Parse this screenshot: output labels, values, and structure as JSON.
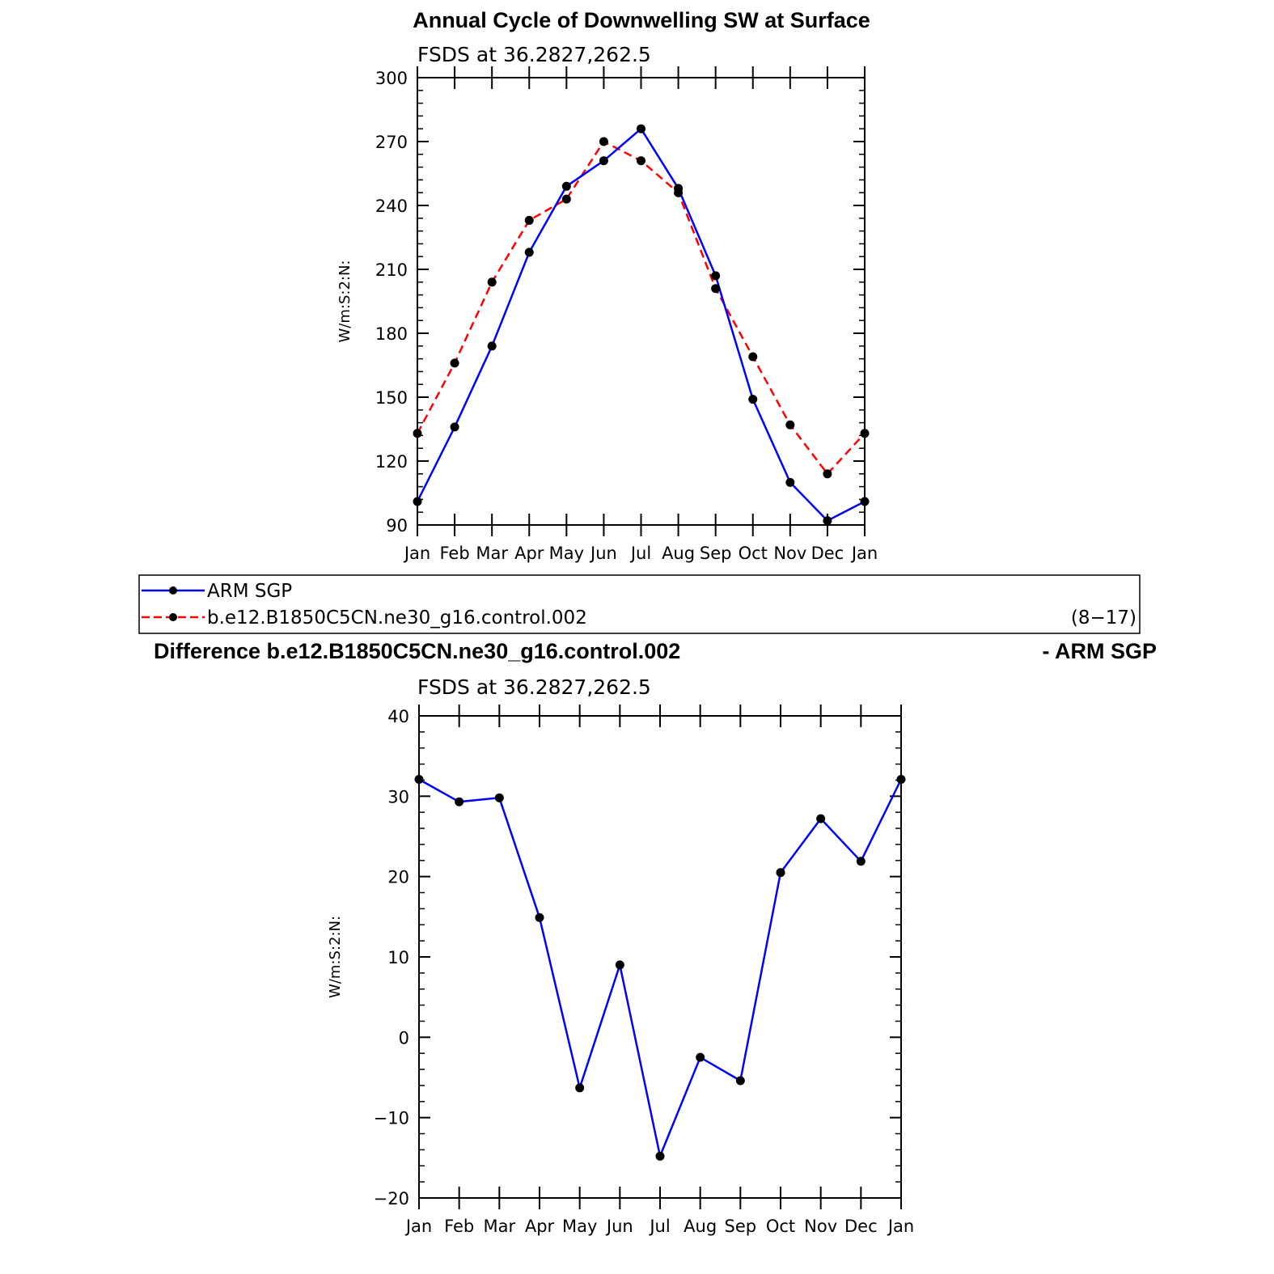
{
  "chart_data": [
    {
      "type": "line",
      "title": "Annual Cycle of Downwelling SW at Surface",
      "subtitle": "FSDS at 36.2827,262.5",
      "ylabel": "W/m:S:2:N:",
      "ylim": [
        90,
        300
      ],
      "yticks": [
        90,
        120,
        150,
        180,
        210,
        240,
        270,
        300
      ],
      "categories": [
        "Jan",
        "Feb",
        "Mar",
        "Apr",
        "May",
        "Jun",
        "Jul",
        "Aug",
        "Sep",
        "Oct",
        "Nov",
        "Dec",
        "Jan"
      ],
      "series": [
        {
          "name": "ARM SGP",
          "color": "#0000ff",
          "dash": "solid",
          "values": [
            101,
            136,
            174,
            218,
            249,
            261,
            276,
            248,
            207,
            149,
            110,
            92,
            101
          ]
        },
        {
          "name": "b.e12.B1850C5CN.ne30_g16.control.002",
          "color": "#ff0000",
          "dash": "dashed",
          "values": [
            133,
            166,
            204,
            233,
            243,
            270,
            261,
            246,
            201,
            169,
            137,
            114,
            133
          ]
        }
      ],
      "legend": {
        "position": "bottom",
        "note": "(8−17)"
      }
    },
    {
      "type": "line",
      "title_left": "Difference b.e12.B1850C5CN.ne30_g16.control.002",
      "title_right": "- ARM SGP",
      "subtitle": "FSDS at 36.2827,262.5",
      "ylabel": "W/m:S:2:N:",
      "ylim": [
        -20,
        40
      ],
      "yticks": [
        -20,
        -10,
        0,
        10,
        20,
        30,
        40
      ],
      "ytick_labels": [
        "−20",
        "−10",
        "0",
        "10",
        "20",
        "30",
        "40"
      ],
      "categories": [
        "Jan",
        "Feb",
        "Mar",
        "Apr",
        "May",
        "Jun",
        "Jul",
        "Aug",
        "Sep",
        "Oct",
        "Nov",
        "Dec",
        "Jan"
      ],
      "series": [
        {
          "color": "#0000ff",
          "dash": "solid",
          "values": [
            32.1,
            29.3,
            29.8,
            14.9,
            -6.3,
            9.0,
            -14.8,
            -2.5,
            -5.4,
            20.5,
            27.2,
            21.9,
            32.1
          ]
        }
      ]
    }
  ]
}
